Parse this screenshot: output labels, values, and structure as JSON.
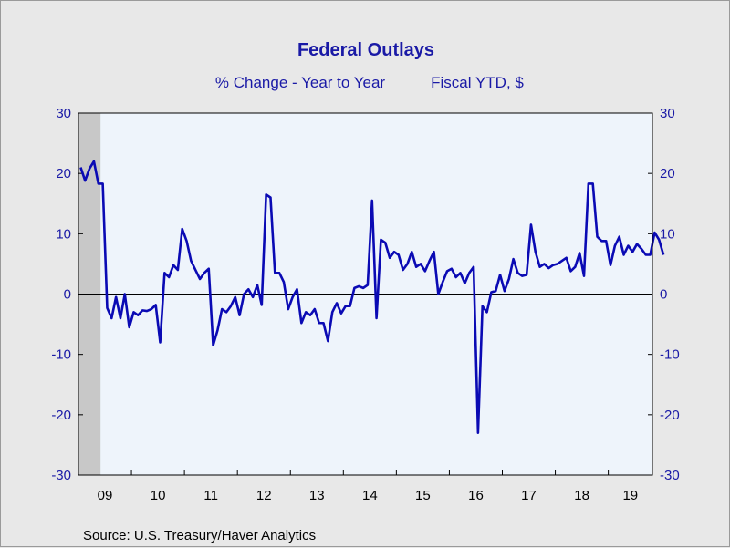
{
  "chart_data": {
    "type": "line",
    "title": "Federal Outlays",
    "subtitle_left": "% Change - Year to Year",
    "subtitle_right": "Fiscal YTD, $",
    "source": "Source:  U.S. Treasury/Haver Analytics",
    "ylim": [
      -30,
      30
    ],
    "y_ticks": [
      30,
      20,
      10,
      0,
      -10,
      -20,
      -30
    ],
    "y_tick_labels": [
      "30",
      "20",
      "10",
      "0",
      "-10",
      "-20",
      "-30"
    ],
    "x_tick_labels": [
      "09",
      "10",
      "11",
      "12",
      "13",
      "14",
      "15",
      "16",
      "17",
      "18",
      "19"
    ],
    "grid": false,
    "recession_shading": [
      [
        "2009-01",
        "2009-06"
      ]
    ],
    "colors": {
      "line": "#0a0ab4",
      "text": "#1a1aa6",
      "plot_bg": "#eef4fb",
      "shade": "#c8c8c8",
      "page_bg": "#e8e8e8"
    },
    "series": [
      {
        "start": "2009-01",
        "frequency": "monthly",
        "values": [
          21.0,
          18.8,
          20.8,
          22.0,
          18.3,
          18.3,
          -2.3,
          -4.0,
          -0.5,
          -4.0,
          0.0,
          -5.5,
          -3.0,
          -3.5,
          -2.7,
          -2.8,
          -2.5,
          -1.8,
          -8.0,
          3.5,
          2.8,
          4.8,
          4.0,
          10.8,
          8.8,
          5.5,
          4.0,
          2.5,
          3.5,
          4.2,
          -8.5,
          -6.0,
          -2.5,
          -3.0,
          -2.0,
          -0.5,
          -3.5,
          0.0,
          0.8,
          -0.5,
          1.5,
          -1.8,
          16.5,
          16.0,
          3.5,
          3.5,
          2.0,
          -2.5,
          -0.5,
          0.8,
          -4.8,
          -3.0,
          -3.5,
          -2.5,
          -4.8,
          -4.8,
          -7.8,
          -3.0,
          -1.5,
          -3.2,
          -2.0,
          -2.0,
          1.0,
          1.3,
          1.0,
          1.5,
          15.5,
          -4.0,
          9.0,
          8.5,
          6.0,
          7.0,
          6.5,
          4.0,
          5.0,
          7.0,
          4.5,
          5.0,
          3.8,
          5.5,
          7.0,
          0.0,
          2.0,
          3.8,
          4.2,
          2.8,
          3.5,
          1.8,
          3.5,
          4.5,
          -23.0,
          -2.0,
          -3.0,
          0.3,
          0.5,
          3.2,
          0.5,
          2.5,
          5.8,
          3.5,
          3.0,
          3.2,
          11.5,
          7.0,
          4.5,
          5.0,
          4.3,
          4.8,
          5.0,
          5.5,
          6.0,
          3.8,
          4.5,
          6.8,
          3.0,
          18.3,
          18.3,
          9.5,
          8.8,
          8.8,
          4.8,
          8.0,
          9.5,
          6.5,
          8.0,
          7.0,
          8.3,
          7.5,
          6.5,
          6.5,
          10.2,
          9.0,
          6.5
        ]
      }
    ]
  }
}
